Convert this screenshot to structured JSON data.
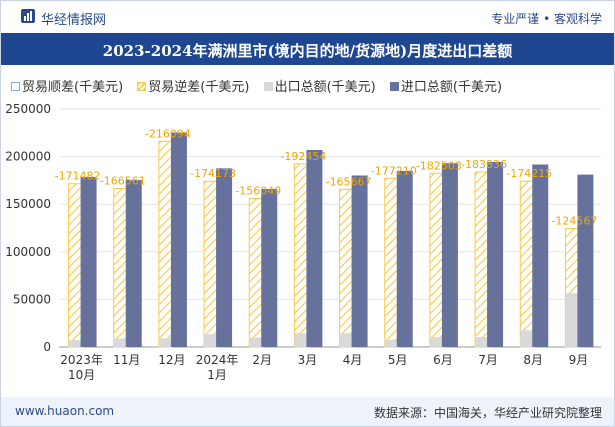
{
  "header": {
    "brand": "华经情报网",
    "tagline": "专业严谨 • 客观科学"
  },
  "title": "2023-2024年满洲里市(境内目的地/货源地)月度进出口差额",
  "footer": {
    "website": "www.huaon.com",
    "source": "数据来源：中国海关，华经产业研究院整理"
  },
  "colors": {
    "header_bar": "#1f4791",
    "surplus": "#8eaad9",
    "deficit": "#f7c948",
    "export": "#d9d9d9",
    "import": "#67729c"
  },
  "chart_data": {
    "type": "bar",
    "categories": [
      [
        "2023年",
        "10月"
      ],
      [
        "11月"
      ],
      [
        "12月"
      ],
      [
        "2024年",
        "1月"
      ],
      [
        "2月"
      ],
      [
        "3月"
      ],
      [
        "4月"
      ],
      [
        "5月"
      ],
      [
        "6月"
      ],
      [
        "7月"
      ],
      [
        "8月"
      ],
      [
        "9月"
      ]
    ],
    "ylim": [
      0,
      250000
    ],
    "yticks": [
      "0",
      "50000",
      "100000",
      "150000",
      "200000",
      "250000"
    ],
    "legend_position": "top",
    "series": [
      {
        "name": "贸易顺差(千美元)",
        "values": [
          null,
          null,
          null,
          null,
          null,
          null,
          null,
          null,
          null,
          null,
          null,
          null
        ]
      },
      {
        "name": "贸易逆差(千美元)",
        "values": [
          171482,
          166561,
          216094,
          174173,
          156049,
          192454,
          165667,
          177210,
          182503,
          183836,
          174215,
          124567
        ]
      },
      {
        "name": "出口总额(千美元)",
        "values": [
          7200,
          8800,
          9200,
          13500,
          10000,
          14500,
          14500,
          7800,
          10500,
          10500,
          17500,
          56500
        ]
      },
      {
        "name": "进口总额(千美元)",
        "values": [
          178682,
          175361,
          225294,
          187673,
          166049,
          206954,
          180167,
          185010,
          193003,
          194336,
          191715,
          181067
        ]
      }
    ],
    "data_labels": [
      "-171482",
      "-166561",
      "-216094",
      "-174173",
      "-156049",
      "-192454",
      "-165667",
      "-177210",
      "-182503",
      "-183836",
      "-174215",
      "-124567"
    ]
  }
}
